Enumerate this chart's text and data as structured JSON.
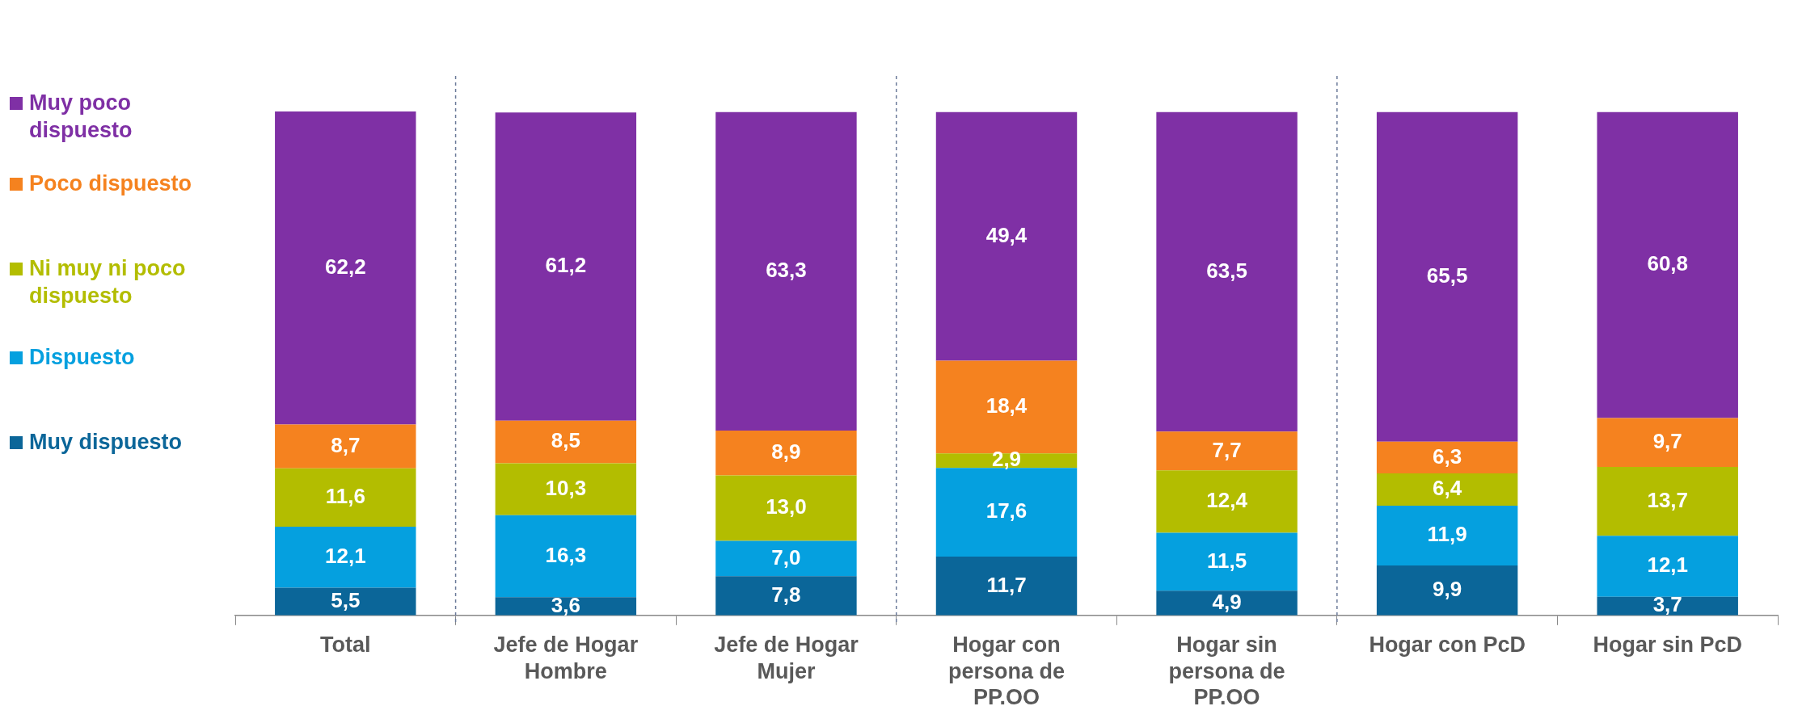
{
  "chart_data": {
    "type": "bar",
    "stacked": true,
    "categories": [
      "Total",
      "Jefe de Hogar Hombre",
      "Jefe de Hogar Mujer",
      "Hogar con persona de PP.OO",
      "Hogar sin persona de PP.OO",
      "Hogar con PcD",
      "Hogar sin PcD"
    ],
    "series": [
      {
        "name": "Muy dispuesto",
        "color": "#0b6699",
        "values": [
          5.5,
          3.6,
          7.8,
          11.7,
          4.9,
          9.9,
          3.7
        ],
        "value_labels": [
          "5,5",
          "3,6",
          "7,8",
          "11,7",
          "4,9",
          "9,9",
          "3,7"
        ]
      },
      {
        "name": "Dispuesto",
        "color": "#05a0df",
        "values": [
          12.1,
          16.3,
          7.0,
          17.6,
          11.5,
          11.9,
          12.1
        ],
        "value_labels": [
          "12,1",
          "16,3",
          "7,0",
          "17,6",
          "11,5",
          "11,9",
          "12,1"
        ]
      },
      {
        "name": "Ni muy ni poco dispuesto",
        "color": "#b3bd00",
        "values": [
          11.6,
          10.3,
          13.0,
          2.9,
          12.4,
          6.4,
          13.7
        ],
        "value_labels": [
          "11,6",
          "10,3",
          "13,0",
          "2,9",
          "12,4",
          "6,4",
          "13,7"
        ]
      },
      {
        "name": "Poco dispuesto",
        "color": "#f5821f",
        "values": [
          8.7,
          8.5,
          8.9,
          18.4,
          7.7,
          6.3,
          9.7
        ],
        "value_labels": [
          "8,7",
          "8,5",
          "8,9",
          "18,4",
          "7,7",
          "6,3",
          "9,7"
        ]
      },
      {
        "name": "Muy poco dispuesto",
        "color": "#7f30a5",
        "values": [
          62.2,
          61.2,
          63.3,
          49.4,
          63.5,
          65.5,
          60.8
        ],
        "value_labels": [
          "62,2",
          "61,2",
          "63,3",
          "49,4",
          "63,5",
          "65,5",
          "60,8"
        ]
      }
    ],
    "tick_labels": "x",
    "legend": "left",
    "grid": false
  }
}
